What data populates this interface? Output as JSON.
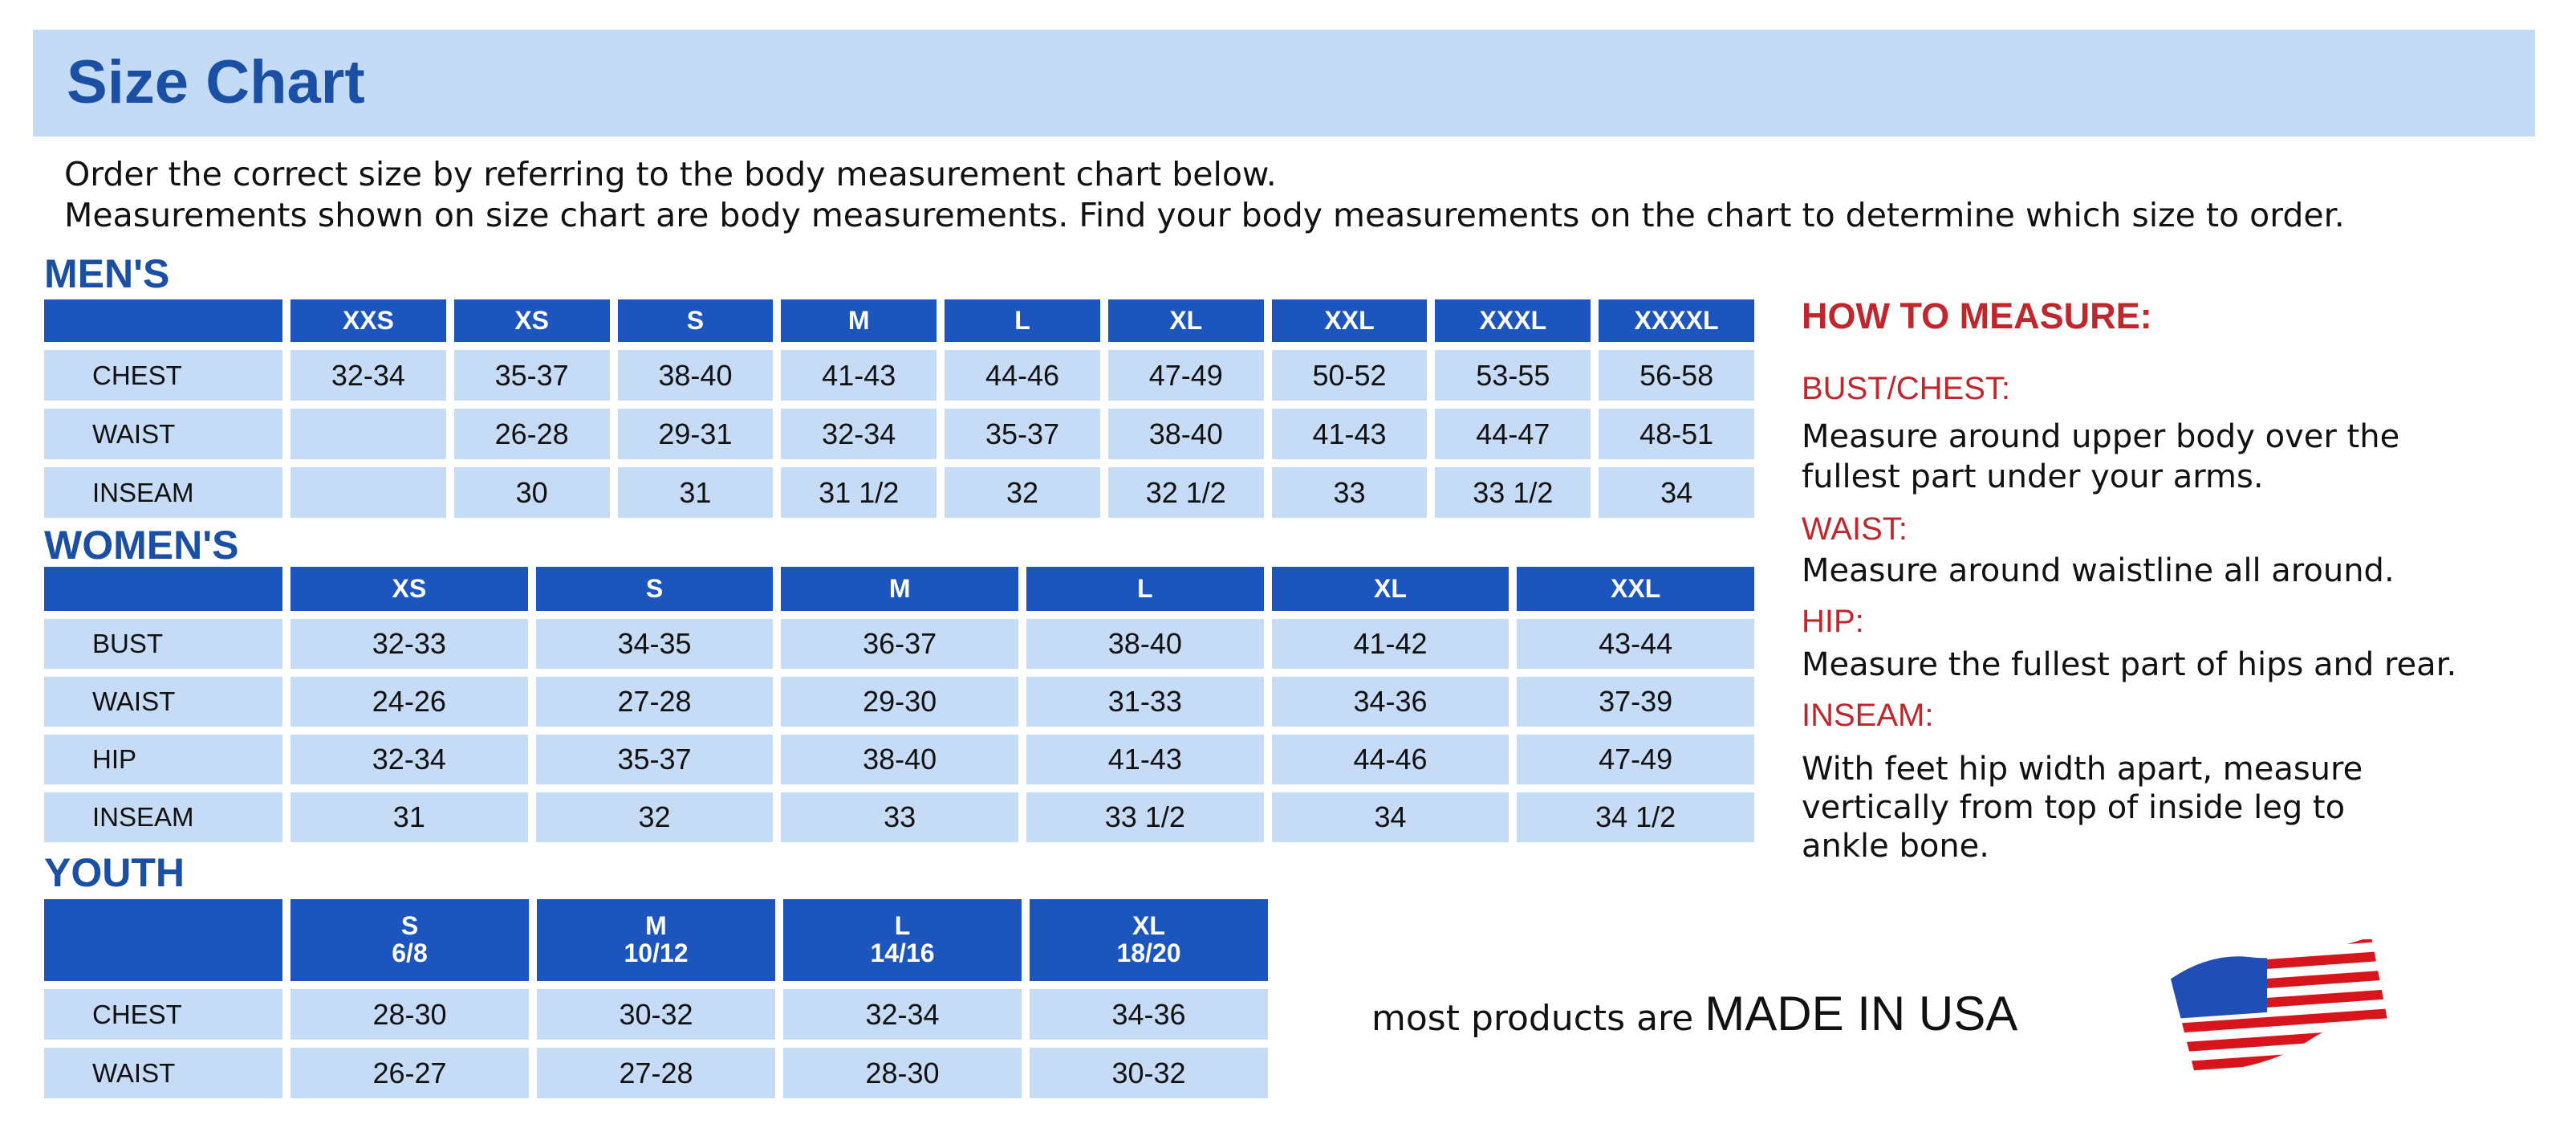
{
  "title": "Size Chart",
  "intro": [
    "Order the correct size by referring to the body measurement chart below.",
    "Measurements shown on size chart are body measurements.  Find your body measurements on the chart to determine which size to order."
  ],
  "mens": {
    "label": "MEN'S",
    "sizes": [
      [
        "XXS"
      ],
      [
        "XS"
      ],
      [
        "S"
      ],
      [
        "M"
      ],
      [
        "L"
      ],
      [
        "XL"
      ],
      [
        "XXL"
      ],
      [
        "XXXL"
      ],
      [
        "XXXXL"
      ]
    ],
    "rows": [
      {
        "label": "CHEST",
        "values": [
          "32-34",
          "35-37",
          "38-40",
          "41-43",
          "44-46",
          "47-49",
          "50-52",
          "53-55",
          "56-58"
        ]
      },
      {
        "label": "WAIST",
        "values": [
          "",
          "26-28",
          "29-31",
          "32-34",
          "35-37",
          "38-40",
          "41-43",
          "44-47",
          "48-51"
        ]
      },
      {
        "label": "INSEAM",
        "values": [
          "",
          "30",
          "31",
          "31 1/2",
          "32",
          "32 1/2",
          "33",
          "33 1/2",
          "34"
        ]
      }
    ]
  },
  "womens": {
    "label": "WOMEN'S",
    "sizes": [
      [
        "XS"
      ],
      [
        "S"
      ],
      [
        "M"
      ],
      [
        "L"
      ],
      [
        "XL"
      ],
      [
        "XXL"
      ]
    ],
    "rows": [
      {
        "label": "BUST",
        "values": [
          "32-33",
          "34-35",
          "36-37",
          "38-40",
          "41-42",
          "43-44"
        ]
      },
      {
        "label": "WAIST",
        "values": [
          "24-26",
          "27-28",
          "29-30",
          "31-33",
          "34-36",
          "37-39"
        ]
      },
      {
        "label": "HIP",
        "values": [
          "32-34",
          "35-37",
          "38-40",
          "41-43",
          "44-46",
          "47-49"
        ]
      },
      {
        "label": "INSEAM",
        "values": [
          "31",
          "32",
          "33",
          "33 1/2",
          "34",
          "34 1/2"
        ]
      }
    ]
  },
  "youth": {
    "label": "YOUTH",
    "sizes": [
      [
        "S",
        "6/8"
      ],
      [
        "M",
        "10/12"
      ],
      [
        "L",
        "14/16"
      ],
      [
        "XL",
        "18/20"
      ]
    ],
    "rows": [
      {
        "label": "CHEST",
        "values": [
          "28-30",
          "30-32",
          "32-34",
          "34-36"
        ]
      },
      {
        "label": "WAIST",
        "values": [
          "26-27",
          "27-28",
          "28-30",
          "30-32"
        ]
      }
    ]
  },
  "how_to_measure": {
    "heading": "HOW TO MEASURE:",
    "items": [
      {
        "term": "BUST/CHEST:",
        "desc": [
          "Measure around upper body over the",
          "fullest part under your arms."
        ]
      },
      {
        "term": "WAIST:",
        "desc": [
          "Measure around waistline all around."
        ]
      },
      {
        "term": "HIP:",
        "desc": [
          "Measure the fullest part of hips and rear."
        ]
      },
      {
        "term": "INSEAM:",
        "desc": [
          "With feet hip width apart, measure",
          "vertically from top of inside leg to",
          "ankle bone."
        ]
      }
    ]
  },
  "footer": {
    "prefix": "most products are ",
    "emphasis": "MADE IN USA",
    "flag_icon": "us-flag-icon"
  },
  "colors": {
    "header_blue": "#1b55bd",
    "cell_blue": "#c5dbf6",
    "title_blue": "#1a4fa3",
    "accent_red": "#c0272d"
  }
}
